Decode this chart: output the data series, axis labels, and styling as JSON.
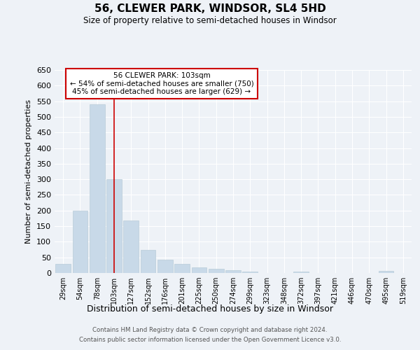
{
  "title1": "56, CLEWER PARK, WINDSOR, SL4 5HD",
  "title2": "Size of property relative to semi-detached houses in Windsor",
  "xlabel": "Distribution of semi-detached houses by size in Windsor",
  "ylabel": "Number of semi-detached properties",
  "footer1": "Contains HM Land Registry data © Crown copyright and database right 2024.",
  "footer2": "Contains public sector information licensed under the Open Government Licence v3.0.",
  "annotation_title": "56 CLEWER PARK: 103sqm",
  "annotation_line1": "← 54% of semi-detached houses are smaller (750)",
  "annotation_line2": "45% of semi-detached houses are larger (629) →",
  "categories": [
    "29sqm",
    "54sqm",
    "78sqm",
    "103sqm",
    "127sqm",
    "152sqm",
    "176sqm",
    "201sqm",
    "225sqm",
    "250sqm",
    "274sqm",
    "299sqm",
    "323sqm",
    "348sqm",
    "372sqm",
    "397sqm",
    "421sqm",
    "446sqm",
    "470sqm",
    "495sqm",
    "519sqm"
  ],
  "values": [
    30,
    200,
    540,
    300,
    168,
    73,
    43,
    30,
    17,
    14,
    8,
    4,
    1,
    1,
    5,
    1,
    1,
    1,
    1,
    6,
    1
  ],
  "bar_color": "#c8d9e8",
  "bar_edge_color": "#b8ccd8",
  "marker_index": 3,
  "marker_color": "#cc0000",
  "bg_color": "#eef2f7",
  "grid_color": "#ffffff",
  "annotation_box_color": "#ffffff",
  "annotation_border_color": "#cc0000",
  "ylim": [
    0,
    650
  ],
  "yticks": [
    0,
    50,
    100,
    150,
    200,
    250,
    300,
    350,
    400,
    450,
    500,
    550,
    600,
    650
  ]
}
